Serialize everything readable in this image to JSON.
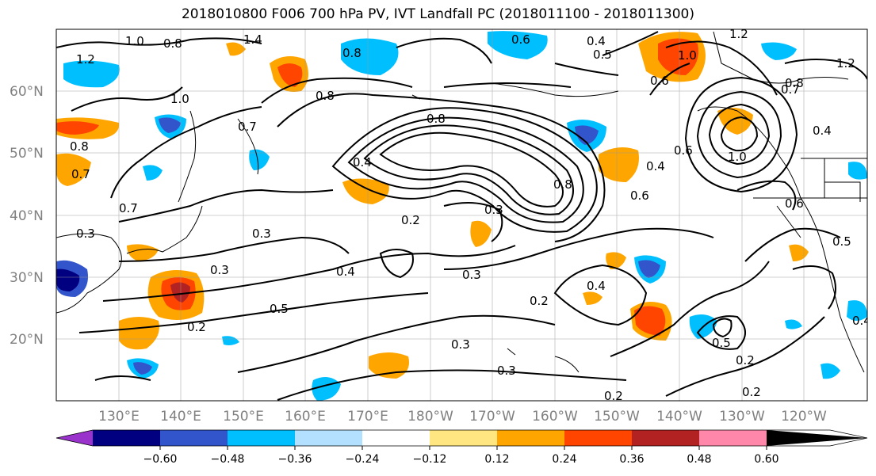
{
  "title": "2018010800 F006 700 hPa PV, IVT Landfall PC (2018011100 - 2018011300)",
  "map": {
    "lat_labels": [
      "60°N",
      "50°N",
      "40°N",
      "30°N",
      "20°N"
    ],
    "lon_labels": [
      "130°E",
      "140°E",
      "150°E",
      "160°E",
      "170°E",
      "180°W",
      "170°W",
      "160°W",
      "150°W",
      "140°W",
      "130°W",
      "120°W"
    ],
    "contour_labels": [
      "1.0",
      "0.8",
      "1.4",
      "1.2",
      "0.8",
      "0.6",
      "0.4",
      "0.5",
      "1.2",
      "1.0",
      "0.8",
      "0.6",
      "1.2",
      "0.8",
      "0.7",
      "0.4",
      "0.8",
      "0.7",
      "1.0",
      "0.6",
      "0.8",
      "0.4",
      "0.3",
      "0.2",
      "0.6",
      "0.4",
      "1.0",
      "0.8",
      "0.7",
      "0.6",
      "0.7",
      "0.3",
      "0.5",
      "0.3",
      "0.4",
      "0.3",
      "0.4",
      "0.5",
      "0.2",
      "0.3",
      "0.2",
      "0.4",
      "0.3",
      "0.3",
      "0.5",
      "0.2",
      "0.2",
      "0.2"
    ]
  },
  "colorbar": {
    "colors": [
      "#9933cc",
      "#000080",
      "#3355cc",
      "#00bfff",
      "#b3e0ff",
      "#ffffff",
      "#ffe680",
      "#ffa500",
      "#ff4500",
      "#b22222",
      "#ff88aa"
    ],
    "tick_labels": [
      "−0.60",
      "−0.48",
      "−0.36",
      "−0.24",
      "−0.12",
      "0.12",
      "0.24",
      "0.36",
      "0.48",
      "0.60"
    ]
  }
}
